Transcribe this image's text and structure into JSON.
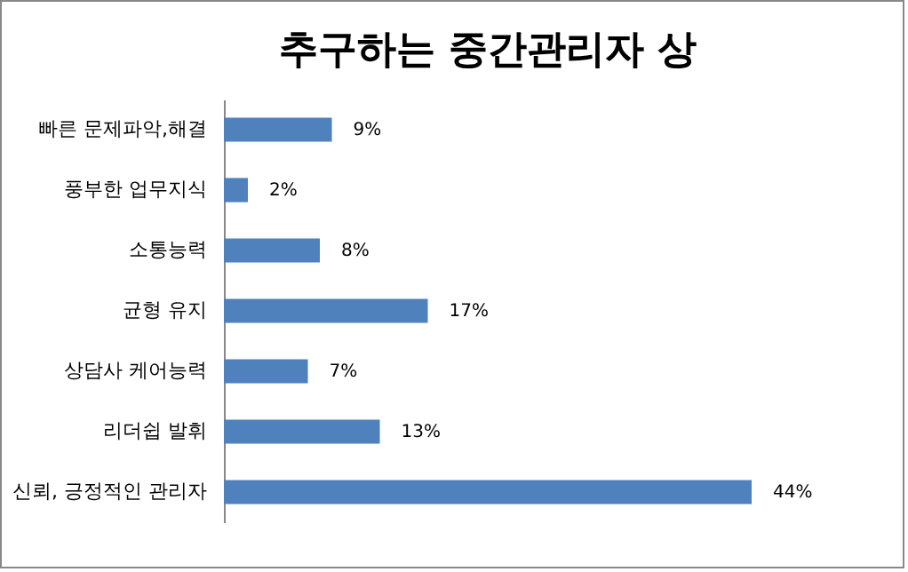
{
  "chart_data": {
    "type": "bar",
    "orientation": "horizontal",
    "title": "추구하는 중간관리자 상",
    "categories": [
      "빠른 문제파악,해결",
      "풍부한 업무지식",
      "소통능력",
      "균형 유지",
      "상담사 케어능력",
      "리더쉽 발휘",
      "신뢰, 긍정적인 관리자"
    ],
    "values": [
      9,
      2,
      8,
      17,
      7,
      13,
      44
    ],
    "value_labels": [
      "9%",
      "2%",
      "8%",
      "17%",
      "7%",
      "13%",
      "44%"
    ],
    "color": "#4f81bd"
  }
}
